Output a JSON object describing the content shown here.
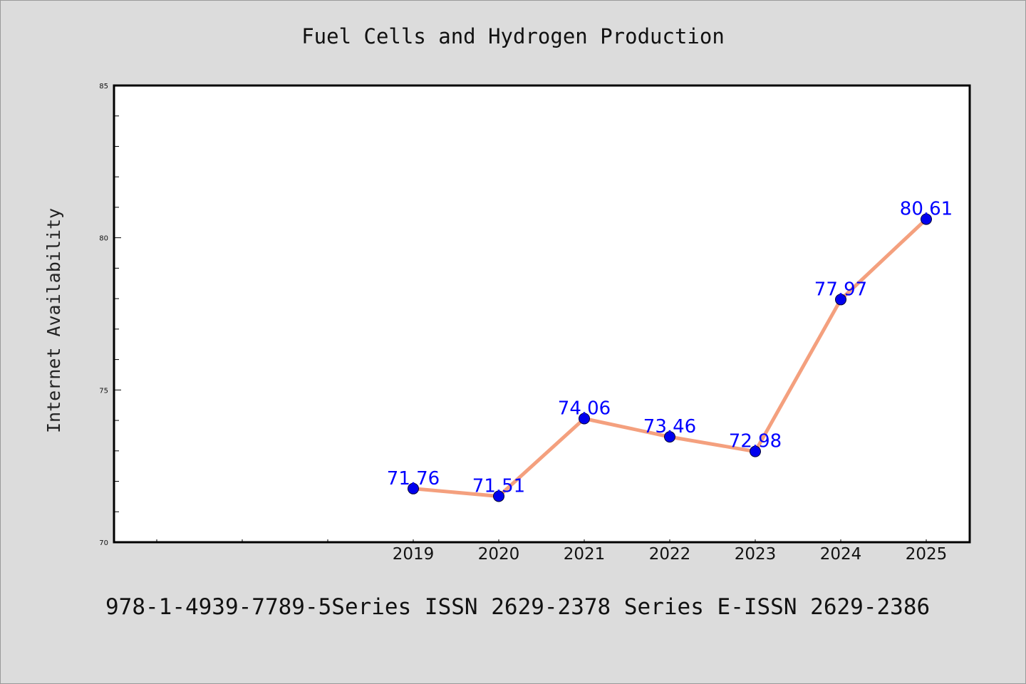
{
  "header": {
    "title": "Fuel Cells and Hydrogen Production"
  },
  "footer": {
    "text": "978-1-4939-7789-5Series ISSN 2629-2378 Series E-ISSN 2629-2386"
  },
  "colors": {
    "background": "#dcdcdc",
    "plot_area": "#ffffff",
    "line": "#f4a07e",
    "marker": "#0000ee",
    "label": "#0000ff"
  },
  "chart_data": {
    "type": "line",
    "title": "Fuel Cells and Hydrogen Production",
    "xlabel": "",
    "ylabel": "Internet Availability",
    "ylim": [
      70,
      85
    ],
    "y_ticks": [
      70,
      75,
      80,
      85
    ],
    "categories": [
      "2019",
      "2020",
      "2021",
      "2022",
      "2023",
      "2024",
      "2025"
    ],
    "series": [
      {
        "values": [
          71.76,
          71.51,
          74.06,
          73.46,
          72.98,
          77.97,
          80.61
        ],
        "labels": [
          "71.76",
          "71.51",
          "74.06",
          "73.46",
          "72.98",
          "77.97",
          "80.61"
        ]
      }
    ],
    "grid": false,
    "legend": "none"
  }
}
